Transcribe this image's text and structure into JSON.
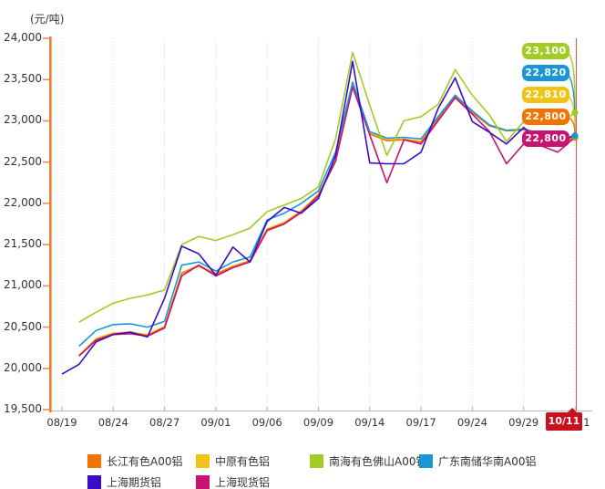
{
  "chart_data": {
    "type": "line",
    "title": "",
    "y_axis_unit": "(元/吨)",
    "ylim": [
      19500,
      24000
    ],
    "ytick_step": 500,
    "y_tick_labels": [
      "24,000",
      "23,500",
      "23,000",
      "22,500",
      "22,000",
      "21,500",
      "21,000",
      "20,500",
      "20,000",
      "19,500"
    ],
    "n_points": 31,
    "x_tick_labels": [
      "08/19",
      "08/24",
      "08/27",
      "09/01",
      "09/06",
      "09/09",
      "09/14",
      "09/17",
      "09/24",
      "09/29",
      "10/11"
    ],
    "x_tick_indices": [
      0,
      3,
      6,
      9,
      12,
      15,
      18,
      21,
      24,
      27,
      30
    ],
    "grid": "vertical-dotted",
    "legend_position": "bottom",
    "series": [
      {
        "key": "changjiang",
        "name": "长江有色A00铝",
        "color": "#F27300",
        "values": [
          null,
          20150,
          20350,
          20420,
          20430,
          20400,
          20500,
          21150,
          21240,
          21140,
          21230,
          21300,
          21680,
          21760,
          21900,
          22100,
          22520,
          23420,
          22840,
          22760,
          22770,
          22740,
          23020,
          23300,
          23100,
          22940,
          22880,
          22890,
          22840,
          22700,
          22800
        ]
      },
      {
        "key": "zhongyuan",
        "name": "中原有色铝",
        "color": "#F0C417",
        "values": [
          null,
          20160,
          20360,
          20430,
          20440,
          20410,
          20510,
          21160,
          21250,
          21150,
          21240,
          21310,
          21690,
          21770,
          21910,
          22110,
          22530,
          23430,
          22850,
          22770,
          22780,
          22750,
          23030,
          23310,
          23110,
          22950,
          22890,
          22900,
          22850,
          22710,
          22810
        ]
      },
      {
        "key": "nanhai",
        "name": "南海有色佛山A00铝",
        "color": "#A2CC25",
        "values": [
          null,
          20560,
          20680,
          20790,
          20850,
          20890,
          20950,
          21500,
          21600,
          21550,
          21620,
          21700,
          21900,
          21980,
          22060,
          22200,
          22780,
          23830,
          23190,
          22580,
          23000,
          23050,
          23200,
          23620,
          23310,
          23070,
          22750,
          22990,
          23030,
          22950,
          23100
        ]
      },
      {
        "key": "guangdong",
        "name": "广东南储华南A00铝",
        "color": "#1B96D5",
        "values": [
          null,
          20270,
          20460,
          20530,
          20540,
          20500,
          20570,
          21250,
          21290,
          21180,
          21290,
          21350,
          21800,
          21880,
          22000,
          22150,
          22620,
          23470,
          22870,
          22790,
          22800,
          22780,
          23050,
          23310,
          23120,
          22950,
          22880,
          22900,
          22850,
          22750,
          22820
        ]
      },
      {
        "key": "shanghai-futures",
        "name": "上海期货铝",
        "color": "#3A0CC8",
        "values": [
          19930,
          20050,
          20320,
          20410,
          20440,
          20380,
          20850,
          21480,
          21390,
          21130,
          21470,
          21290,
          21780,
          21950,
          21880,
          22060,
          22580,
          23720,
          22490,
          22480,
          22480,
          22620,
          23150,
          23520,
          22990,
          22860,
          22720,
          22920,
          22750,
          22700,
          22840
        ]
      },
      {
        "key": "shanghai-spot",
        "name": "上海现货铝",
        "color": "#C61472",
        "values": [
          null,
          20150,
          20340,
          20410,
          20420,
          20390,
          20490,
          21120,
          21250,
          21120,
          21220,
          21290,
          21670,
          21750,
          21890,
          22090,
          22510,
          23410,
          22830,
          22250,
          22770,
          22720,
          23000,
          23280,
          23080,
          22870,
          22480,
          22720,
          22700,
          22620,
          22800
        ]
      }
    ],
    "end_labels": [
      {
        "text": "23,100",
        "value": 23100,
        "series_key": "nanhai",
        "color": "#A2CC25"
      },
      {
        "text": "22,820",
        "value": 22820,
        "series_key": "guangdong",
        "color": "#1B96D5"
      },
      {
        "text": "22,810",
        "value": 22810,
        "series_key": "zhongyuan",
        "color": "#F0C417"
      },
      {
        "text": "22,800",
        "value": 22800,
        "series_key": "changjiang",
        "color": "#F27300"
      },
      {
        "text": "22,800",
        "value": 22800,
        "series_key": "shanghai-spot",
        "color": "#C61472"
      }
    ],
    "crosshair": {
      "date_label": "10/11",
      "color": "#E05555",
      "callout_bg": "#C8101E"
    },
    "axis_colors": {
      "y_axis": "#EF7D31",
      "y_tick": "#EE8A5F",
      "x_axis": "#BBBBBB",
      "gridline": "#D9D9D9",
      "text": "#333333"
    }
  }
}
